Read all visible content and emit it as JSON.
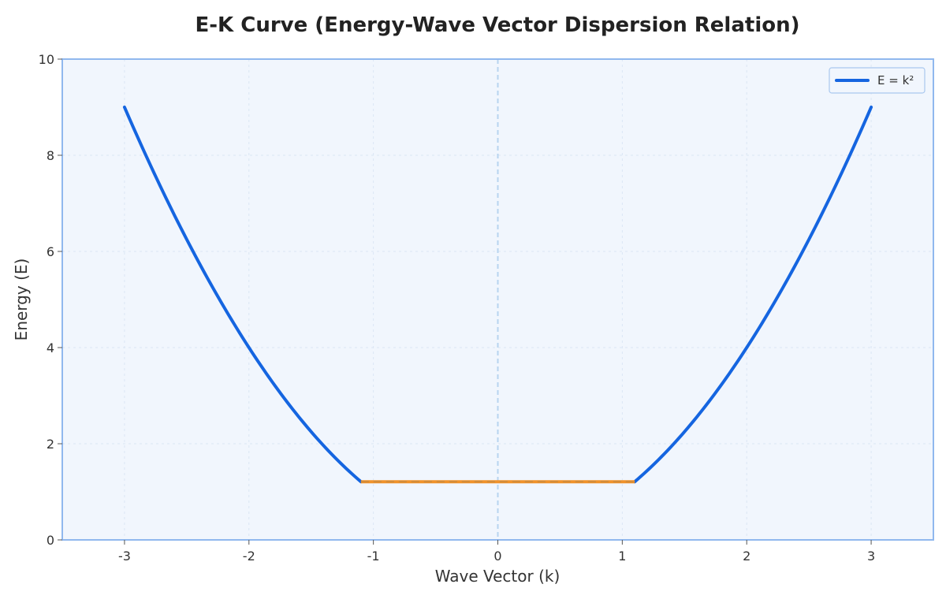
{
  "chart_data": {
    "type": "line",
    "title": "E-K Curve (Energy-Wave Vector Dispersion Relation)",
    "xlabel": "Wave Vector (k)",
    "ylabel": "Energy (E)",
    "xlim": [
      -3.5,
      3.5
    ],
    "ylim": [
      0,
      10
    ],
    "x_ticks": [
      -3,
      -2,
      -1,
      0,
      1,
      2,
      3
    ],
    "x_tick_labels": [
      "-3",
      "-2",
      "-1",
      "0",
      "1",
      "2",
      "3"
    ],
    "y_ticks": [
      0,
      2,
      4,
      6,
      8,
      10
    ],
    "y_tick_labels": [
      "0",
      "2",
      "4",
      "6",
      "8",
      "10"
    ],
    "grid": true,
    "legend_position": "top-right",
    "series": [
      {
        "name": "E = k²",
        "color": "#1565e0",
        "formula": "E = k^2",
        "segments": [
          {
            "k_range": [
              -3,
              -1.1
            ]
          },
          {
            "k_range": [
              1.1,
              3
            ]
          }
        ]
      },
      {
        "color": "#f0922b",
        "style": "flat",
        "k_range": [
          -1.1,
          1.1
        ],
        "E": 1.21
      }
    ],
    "reference_lines": [
      {
        "orientation": "vertical",
        "x": 0,
        "style": "dashed",
        "color": "#b8d4f0"
      },
      {
        "orientation": "horizontal",
        "y": 1.21,
        "k_range": [
          -1.1,
          1.1
        ],
        "style": "dashed",
        "color": "#c98a3d"
      }
    ],
    "colors": {
      "plot_background": "#f1f6fd",
      "frame": "#90b8ee",
      "grid": "#dbe6f4"
    }
  }
}
